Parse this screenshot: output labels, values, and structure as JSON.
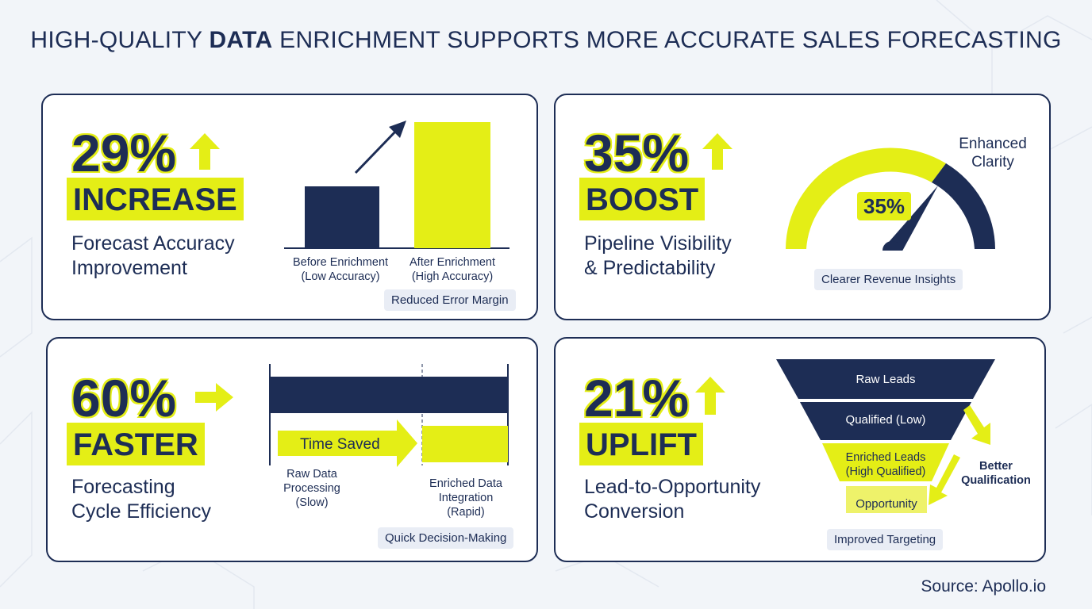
{
  "title": {
    "part1": "HIGH-QUALITY ",
    "bold": "DATA",
    "part2": " ENRICHMENT SUPPORTS MORE ACCURATE SALES FORECASTING"
  },
  "colors": {
    "navy": "#1d2d55",
    "yellow": "#e4ee16",
    "chip": "#e9edf5",
    "background": "#f2f5f9"
  },
  "cards": {
    "accuracy": {
      "percent": "29%",
      "headline": "INCREASE",
      "subtitle_line1": "Forecast Accuracy",
      "subtitle_line2": "Improvement",
      "icon": "up-arrow-icon",
      "bar_before_label_line1": "Before Enrichment",
      "bar_before_label_line2": "(Low Accuracy)",
      "bar_after_label_line1": "After Enrichment",
      "bar_after_label_line2": "(High Accuracy)",
      "chip": "Reduced Error Margin"
    },
    "visibility": {
      "percent": "35%",
      "headline": "BOOST",
      "subtitle_line1": "Pipeline Visibility",
      "subtitle_line2": "& Predictability",
      "icon": "up-arrow-icon",
      "gauge_value": "35%",
      "gauge_label_line1": "Enhanced",
      "gauge_label_line2": "Clarity",
      "chip": "Clearer Revenue Insights"
    },
    "speed": {
      "percent": "60%",
      "headline": "FASTER",
      "subtitle_line1": "Forecasting",
      "subtitle_line2": "Cycle Efficiency",
      "icon": "right-arrow-icon",
      "time_saved": "Time Saved",
      "raw_label_line1": "Raw Data",
      "raw_label_line2": "Processing",
      "raw_label_line3": "(Slow)",
      "enriched_label_line1": "Enriched Data",
      "enriched_label_line2": "Integration",
      "enriched_label_line3": "(Rapid)",
      "chip": "Quick Decision-Making"
    },
    "conversion": {
      "percent": "21%",
      "headline": "UPLIFT",
      "subtitle_line1": "Lead-to-Opportunity",
      "subtitle_line2": "Conversion",
      "icon": "up-arrow-icon",
      "funnel_1": "Raw Leads",
      "funnel_2": "Qualified (Low)",
      "funnel_3_line1": "Enriched Leads",
      "funnel_3_line2": "(High Qualified)",
      "funnel_4": "Opportunity",
      "side_line1": "Better",
      "side_line2": "Qualification",
      "chip": "Improved Targeting"
    }
  },
  "source": "Source: Apollo.io"
}
